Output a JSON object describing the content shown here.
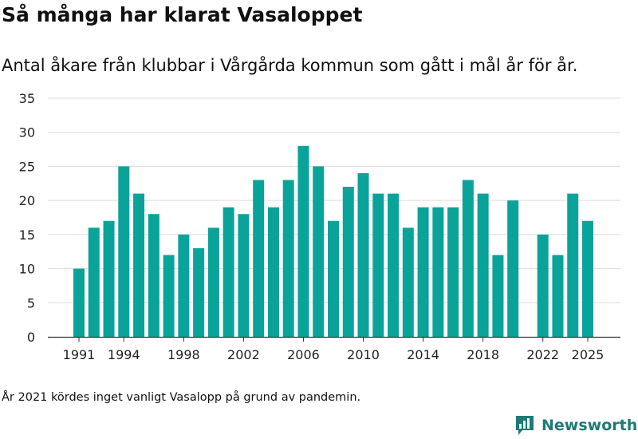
{
  "title": "Så många har klarat Vasaloppet",
  "subtitle": "Antal åkare från klubbar i Vårgårda kommun som gått i mål år för år.",
  "note": "År 2021 kördes inget vanligt Vasalopp på grund av pandemin.",
  "brand": {
    "name": "Newsworthy",
    "icon": "newsworthy-logo-icon",
    "color": "#1f7a74"
  },
  "chart_data": {
    "type": "bar",
    "title": "Så många har klarat Vasaloppet",
    "xlabel": "",
    "ylabel": "",
    "ylim": [
      0,
      35
    ],
    "yticks": [
      0,
      5,
      10,
      15,
      20,
      25,
      30,
      35
    ],
    "xticks": [
      1991,
      1994,
      1998,
      2002,
      2006,
      2010,
      2014,
      2018,
      2022,
      2025
    ],
    "grid": true,
    "legend": "none",
    "bar_color": "#0aa39a",
    "x": [
      1991,
      1992,
      1993,
      1994,
      1995,
      1996,
      1997,
      1998,
      1999,
      2000,
      2001,
      2002,
      2003,
      2004,
      2005,
      2006,
      2007,
      2008,
      2009,
      2010,
      2011,
      2012,
      2013,
      2014,
      2015,
      2016,
      2017,
      2018,
      2019,
      2020,
      2021,
      2022,
      2023,
      2024,
      2025
    ],
    "values": [
      10,
      16,
      17,
      25,
      21,
      18,
      12,
      15,
      13,
      16,
      19,
      18,
      23,
      19,
      23,
      28,
      25,
      17,
      22,
      24,
      21,
      21,
      16,
      19,
      19,
      19,
      23,
      21,
      12,
      20,
      null,
      15,
      12,
      21,
      17
    ]
  }
}
